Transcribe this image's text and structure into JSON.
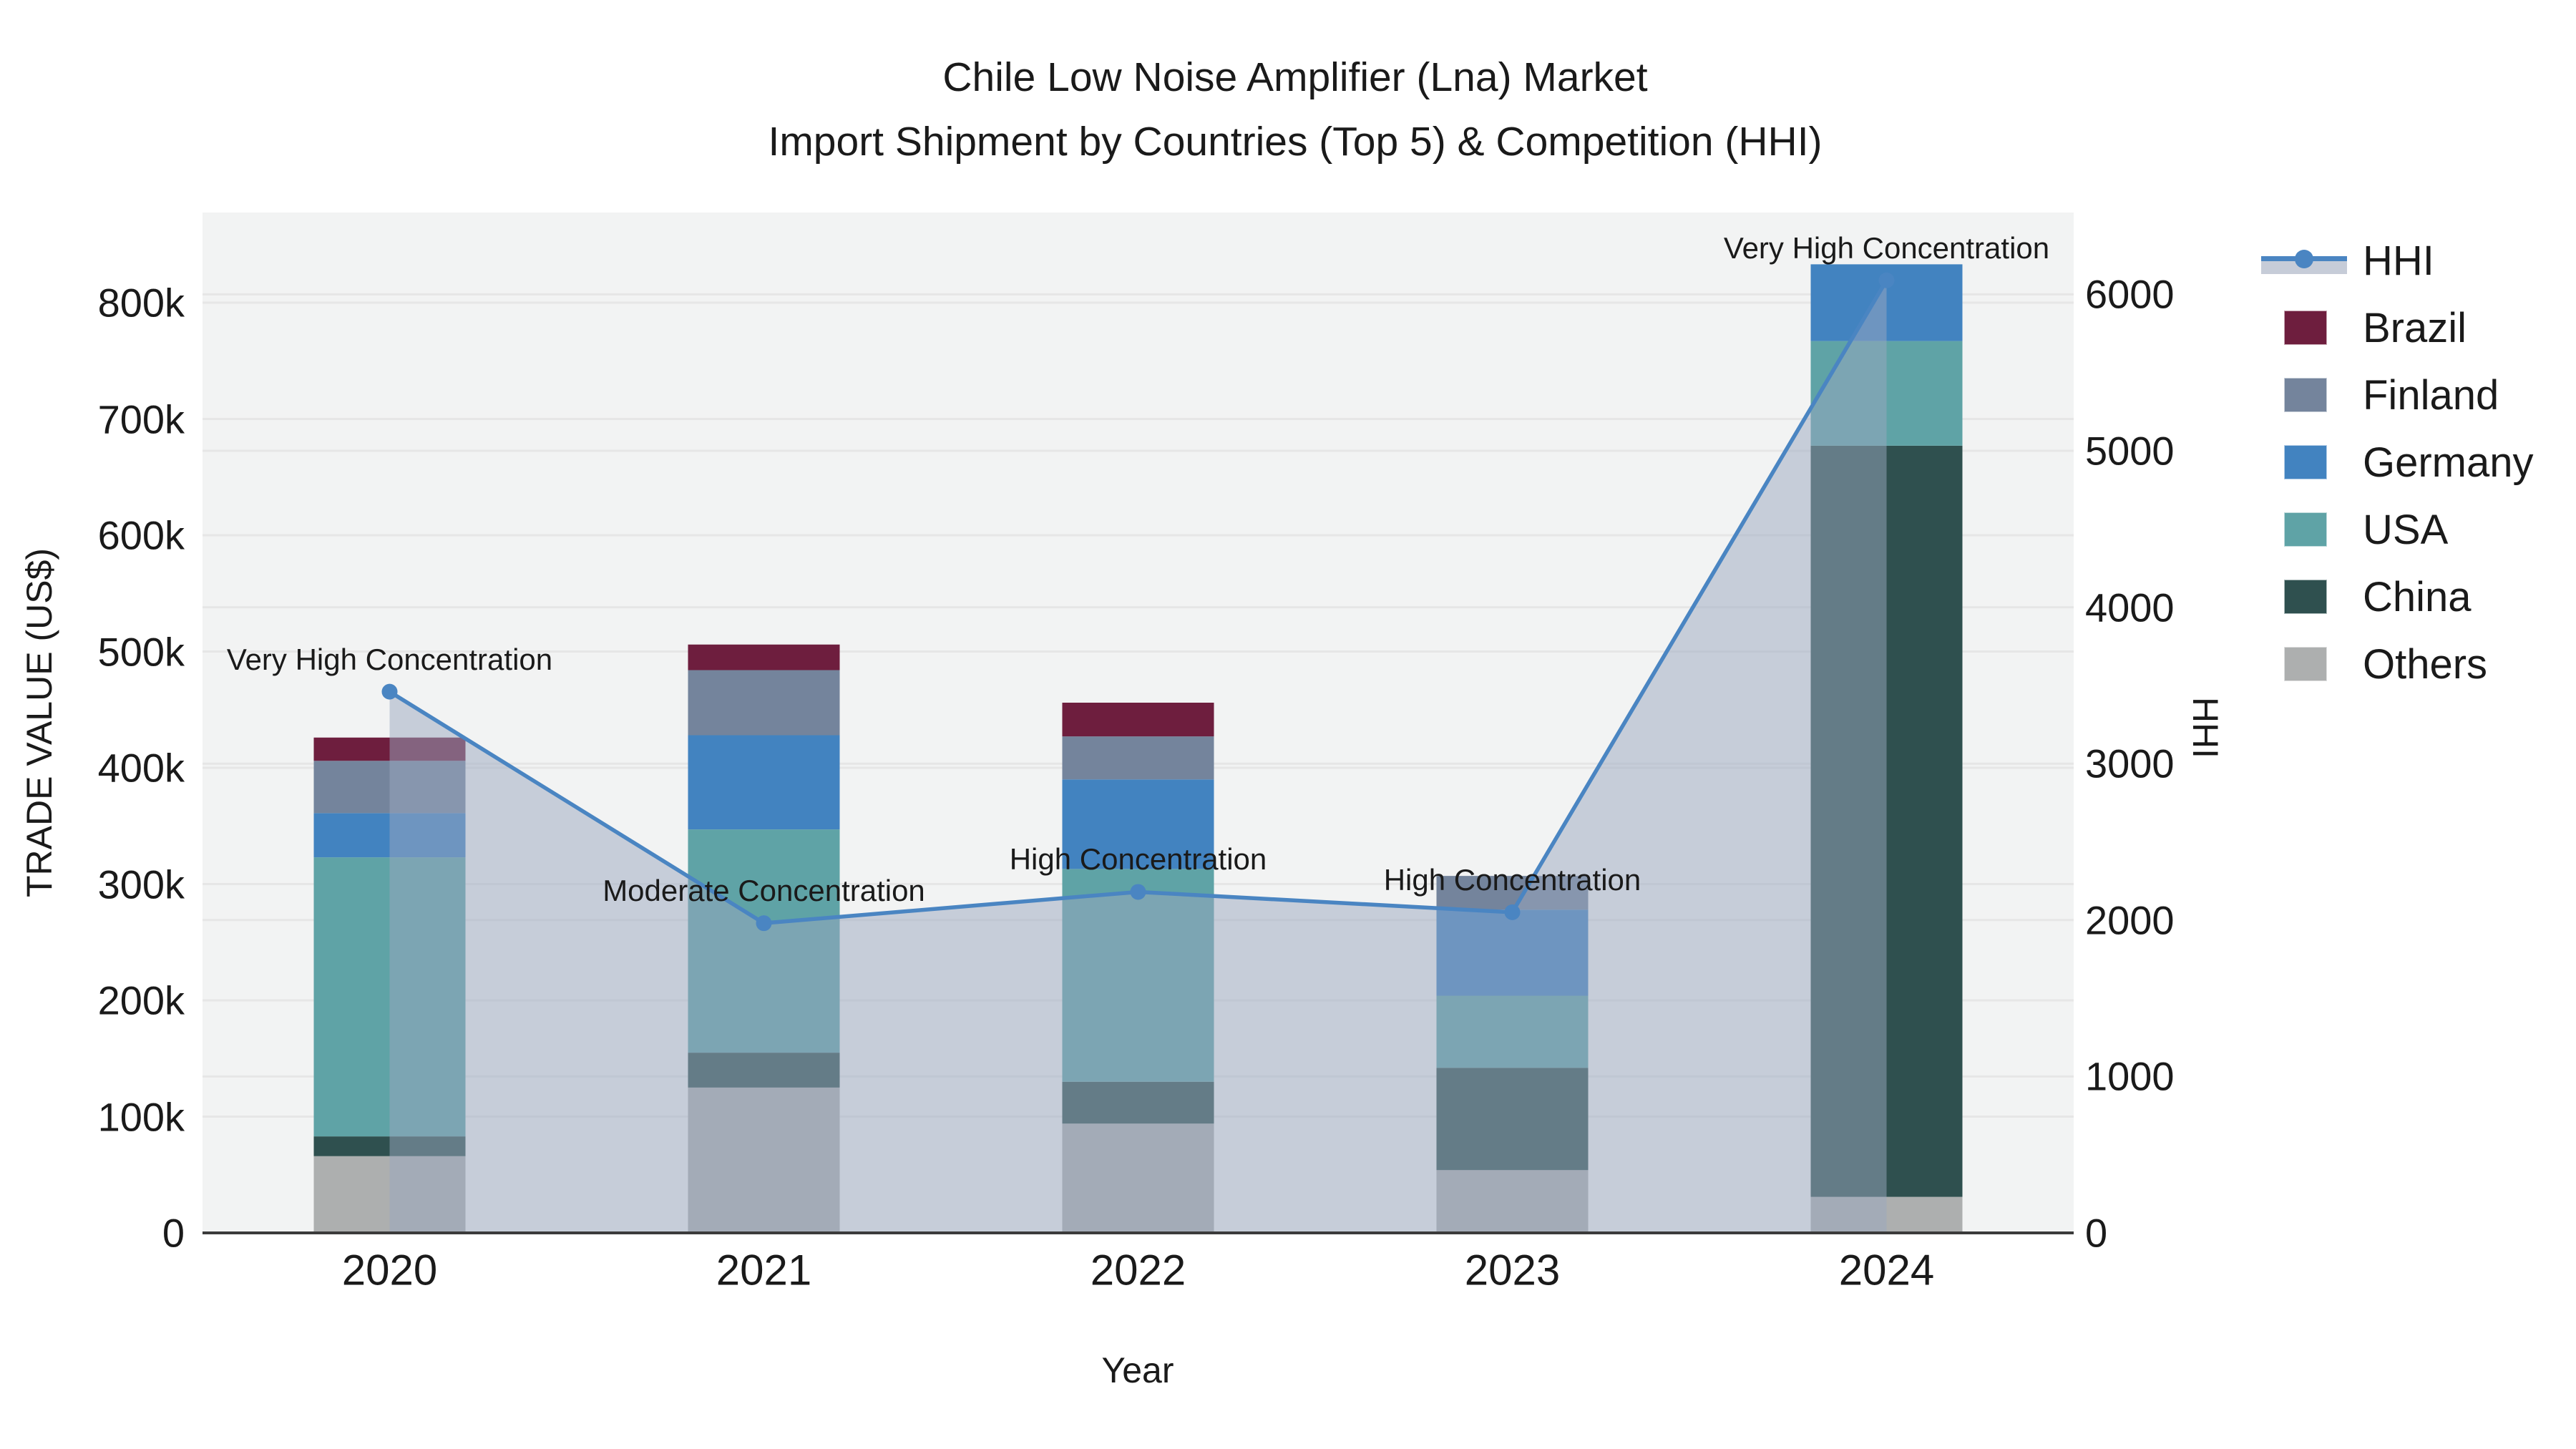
{
  "title": {
    "line1": "Chile Low Noise Amplifier (Lna) Market",
    "line2": "Import Shipment by Countries (Top 5) & Competition (HHI)"
  },
  "axes": {
    "x": {
      "title": "Year",
      "tick_labels": [
        "2020",
        "2021",
        "2022",
        "2023",
        "2024"
      ]
    },
    "left": {
      "title": "TRADE VALUE (US$)",
      "tick_labels": [
        "0",
        "100k",
        "200k",
        "300k",
        "400k",
        "500k",
        "600k",
        "700k",
        "800k"
      ],
      "tick_values": [
        0,
        100000,
        200000,
        300000,
        400000,
        500000,
        600000,
        700000,
        800000
      ],
      "range": [
        0,
        877000
      ]
    },
    "right": {
      "title": "HHI",
      "tick_labels": [
        "0",
        "1000",
        "2000",
        "3000",
        "4000",
        "5000",
        "6000"
      ],
      "tick_values": [
        0,
        1000,
        2000,
        3000,
        4000,
        5000,
        6000
      ],
      "range": [
        0,
        6520
      ]
    }
  },
  "legend": [
    {
      "label": "HHI",
      "type": "line",
      "color": "#4a85c2",
      "band_color": "#c6ccd8"
    },
    {
      "label": "Brazil",
      "type": "patch",
      "color": "#6e1e3e"
    },
    {
      "label": "Finland",
      "type": "patch",
      "color": "#74849c"
    },
    {
      "label": "Germany",
      "type": "patch",
      "color": "#4283c0"
    },
    {
      "label": "USA",
      "type": "patch",
      "color": "#5fa3a6"
    },
    {
      "label": "China",
      "type": "patch",
      "color": "#2f504f"
    },
    {
      "label": "Others",
      "type": "patch",
      "color": "#adafaf"
    }
  ],
  "chart_data": {
    "type": "combo",
    "grid": true,
    "legend_position": "right",
    "bars": {
      "type": "bar",
      "stacked": true,
      "categories": [
        "2020",
        "2021",
        "2022",
        "2023",
        "2024"
      ],
      "value_unit": "US$",
      "series": [
        {
          "name": "Others",
          "color": "#adafaf",
          "values": [
            66000,
            125000,
            94000,
            54000,
            31000
          ]
        },
        {
          "name": "China",
          "color": "#2f504f",
          "values": [
            17000,
            30000,
            36000,
            88000,
            646000
          ]
        },
        {
          "name": "USA",
          "color": "#5fa3a6",
          "values": [
            240000,
            192000,
            183000,
            62000,
            90000
          ]
        },
        {
          "name": "Germany",
          "color": "#4283c0",
          "values": [
            38000,
            81000,
            77000,
            74000,
            66000
          ]
        },
        {
          "name": "Finland",
          "color": "#74849c",
          "values": [
            45000,
            56000,
            37000,
            29000,
            0
          ]
        },
        {
          "name": "Brazil",
          "color": "#6e1e3e",
          "values": [
            20000,
            22000,
            29000,
            0,
            0
          ]
        }
      ],
      "totals": [
        426000,
        506000,
        456000,
        307000,
        833000
      ]
    },
    "line": {
      "type": "line",
      "name": "HHI",
      "color": "#4a85c2",
      "area_fill": "rgba(154,168,192,0.5)",
      "x": [
        "2020",
        "2021",
        "2022",
        "2023",
        "2024"
      ],
      "values": [
        3460,
        1980,
        2180,
        2050,
        6090
      ]
    },
    "annotations": [
      {
        "x": "2020",
        "text": "Very High Concentration"
      },
      {
        "x": "2021",
        "text": "Moderate Concentration"
      },
      {
        "x": "2022",
        "text": "High Concentration"
      },
      {
        "x": "2023",
        "text": "High Concentration"
      },
      {
        "x": "2024",
        "text": "Very High Concentration"
      }
    ]
  },
  "colors": {
    "figure_bg": "#ffffff",
    "plot_bg": "#f2f3f3",
    "grid": "#e6e6e6",
    "axis_line": "#3b3b3b",
    "text": "#1a1a1a"
  }
}
